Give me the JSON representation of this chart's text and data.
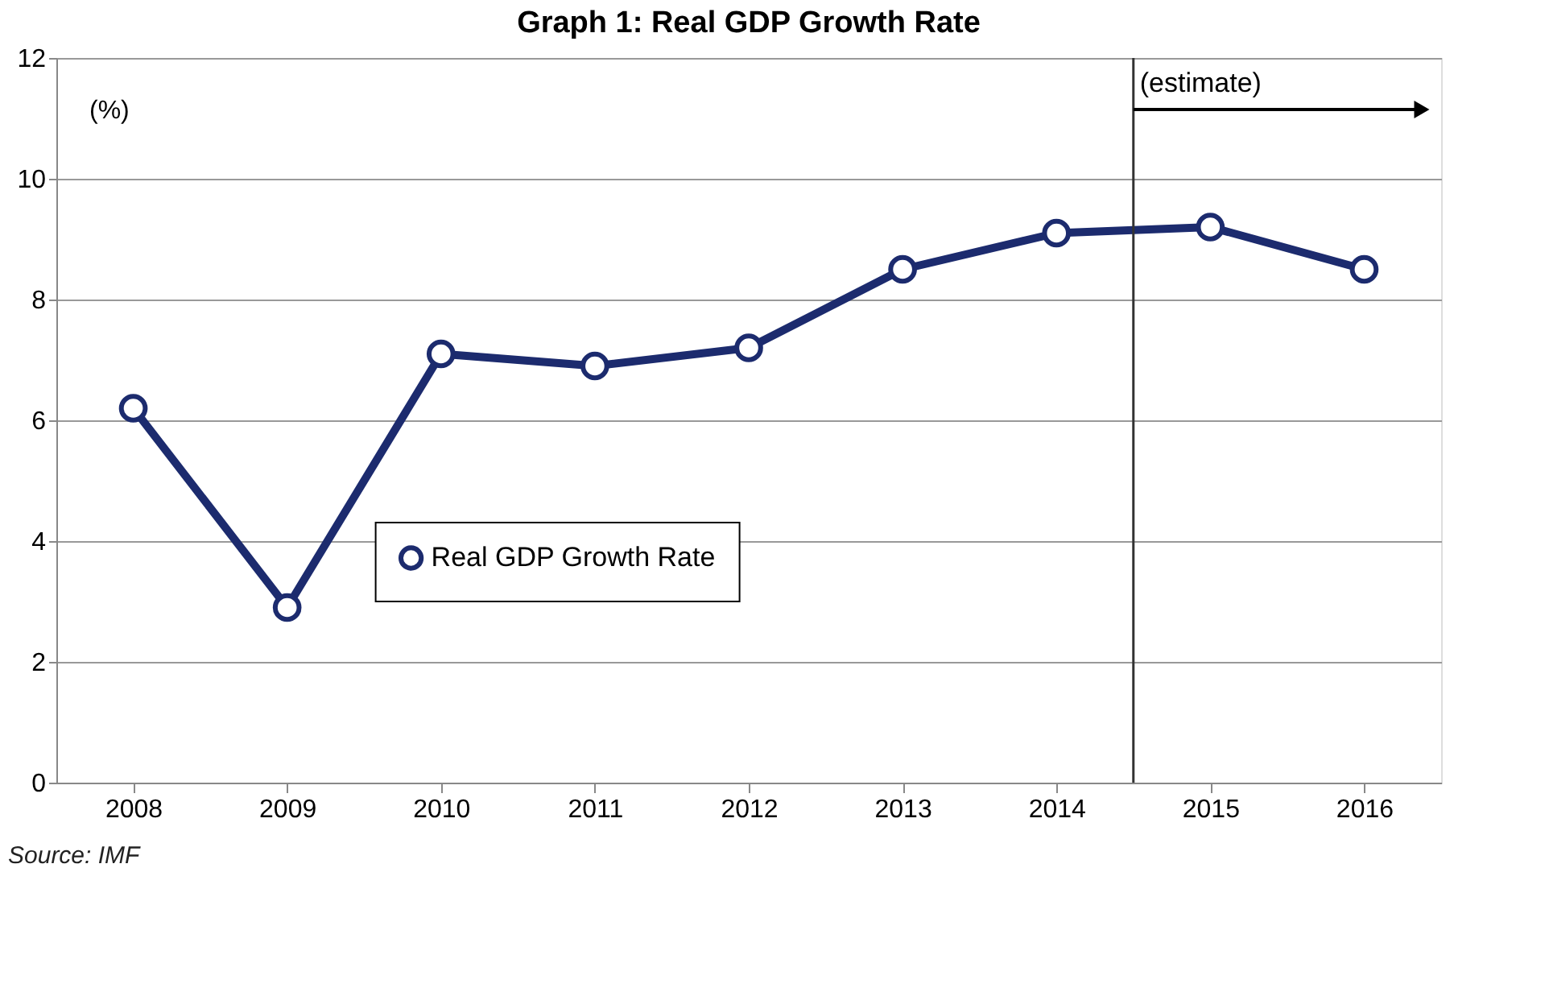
{
  "chart_data": {
    "type": "line",
    "title": "Graph 1: Real GDP Growth Rate",
    "ylabel": "(%)",
    "x": [
      2008,
      2009,
      2010,
      2011,
      2012,
      2013,
      2014,
      2015,
      2016
    ],
    "series": [
      {
        "name": "Real GDP Growth Rate",
        "color": "#1c2b6e",
        "values": [
          6.2,
          2.9,
          7.1,
          6.9,
          7.2,
          8.5,
          9.1,
          9.2,
          8.5
        ]
      }
    ],
    "xlim": [
      2007.5,
      2016.5
    ],
    "xticks": [
      2008,
      2009,
      2010,
      2011,
      2012,
      2013,
      2014,
      2015,
      2016
    ],
    "ylim": [
      0,
      12
    ],
    "yticks": [
      0,
      2,
      4,
      6,
      8,
      10,
      12
    ],
    "grid": "y",
    "marker": "circle",
    "line_style": "solid",
    "legend": "bottom left",
    "ref_lines": [
      {
        "axis": "x",
        "value": 2014.5,
        "label": "(estimate)",
        "color": "#333333"
      }
    ],
    "annotations": [
      "Source: IMF"
    ]
  }
}
